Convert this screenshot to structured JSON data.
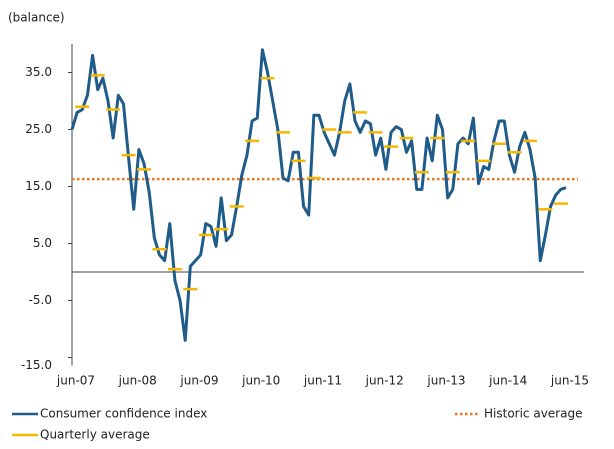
{
  "chart_data": {
    "type": "line",
    "y_label": "(balance)",
    "categories": [
      "jun-07",
      null,
      null,
      null,
      null,
      null,
      null,
      null,
      null,
      null,
      null,
      null,
      "jun-08",
      null,
      null,
      null,
      null,
      null,
      null,
      null,
      null,
      null,
      null,
      null,
      "jun-09",
      null,
      null,
      null,
      null,
      null,
      null,
      null,
      null,
      null,
      null,
      null,
      "jun-10",
      null,
      null,
      null,
      null,
      null,
      null,
      null,
      null,
      null,
      null,
      null,
      "jun-11",
      null,
      null,
      null,
      null,
      null,
      null,
      null,
      null,
      null,
      null,
      null,
      "jun-12",
      null,
      null,
      null,
      null,
      null,
      null,
      null,
      null,
      null,
      null,
      null,
      "jun-13",
      null,
      null,
      null,
      null,
      null,
      null,
      null,
      null,
      null,
      null,
      null,
      "jun-14",
      null,
      null,
      null,
      null,
      null,
      null,
      null,
      null,
      null,
      null,
      null,
      "jun-15"
    ],
    "series": [
      {
        "name": "Consumer confidence index",
        "color": "#1f5c8a",
        "values": [
          25,
          28,
          28.5,
          31,
          38,
          32,
          34,
          30,
          23.5,
          31,
          29.5,
          20,
          11,
          21.5,
          19,
          14,
          6,
          3,
          2,
          8.5,
          -1.5,
          -5,
          -12,
          1,
          2,
          3,
          8.5,
          8,
          4.5,
          13,
          5.5,
          6.5,
          11.5,
          17,
          20.5,
          26.5,
          27,
          39,
          35,
          30,
          25,
          16.5,
          16,
          21,
          21,
          11.5,
          10,
          27.5,
          27.5,
          24.5,
          22.5,
          20.5,
          24.5,
          30,
          33,
          26.5,
          24.5,
          26.5,
          26,
          20.5,
          23.5,
          18,
          24.5,
          25.5,
          25,
          21,
          23,
          14.5,
          14.5,
          23.5,
          19.5,
          27.5,
          25,
          13,
          14.5,
          22.5,
          23.5,
          22.5,
          27,
          15.5,
          18.5,
          18,
          23,
          26.5,
          26.5,
          20.5,
          17.5,
          22,
          24.5,
          21.5,
          16.5,
          2,
          6.5,
          11.5,
          13.5,
          14.5,
          14.8
        ]
      },
      {
        "name": "Quarterly average",
        "color": "#f5b800",
        "style": "dash",
        "values": [
          null,
          null,
          29,
          null,
          null,
          34.5,
          null,
          null,
          28.5,
          null,
          null,
          20.5,
          null,
          null,
          18,
          null,
          null,
          4,
          null,
          null,
          0.5,
          null,
          null,
          -3,
          null,
          null,
          6.5,
          null,
          null,
          7.5,
          null,
          null,
          11.5,
          null,
          null,
          23,
          null,
          null,
          34,
          null,
          null,
          24.5,
          null,
          null,
          19.5,
          null,
          null,
          16.5,
          null,
          null,
          25,
          null,
          null,
          24.5,
          null,
          null,
          28,
          null,
          null,
          24.5,
          null,
          null,
          22,
          null,
          null,
          23.5,
          null,
          null,
          17.5,
          null,
          null,
          23.5,
          null,
          null,
          17.5,
          null,
          null,
          23,
          null,
          null,
          19.5,
          null,
          null,
          22.5,
          null,
          null,
          21,
          null,
          null,
          23,
          null,
          null,
          11,
          null,
          null,
          12,
          null
        ]
      }
    ],
    "reference_lines": [
      {
        "name": "Historic average",
        "value": 16.3,
        "color": "#e87722"
      }
    ],
    "ylim": [
      -15,
      40
    ],
    "yticks": [
      {
        "value": -15,
        "label": "-15.0"
      },
      {
        "value": -5,
        "label": "-5.0"
      },
      {
        "value": 5,
        "label": "5.0"
      },
      {
        "value": 15,
        "label": "15.0"
      },
      {
        "value": 25,
        "label": "25.0"
      },
      {
        "value": 35,
        "label": "35.0"
      }
    ]
  }
}
